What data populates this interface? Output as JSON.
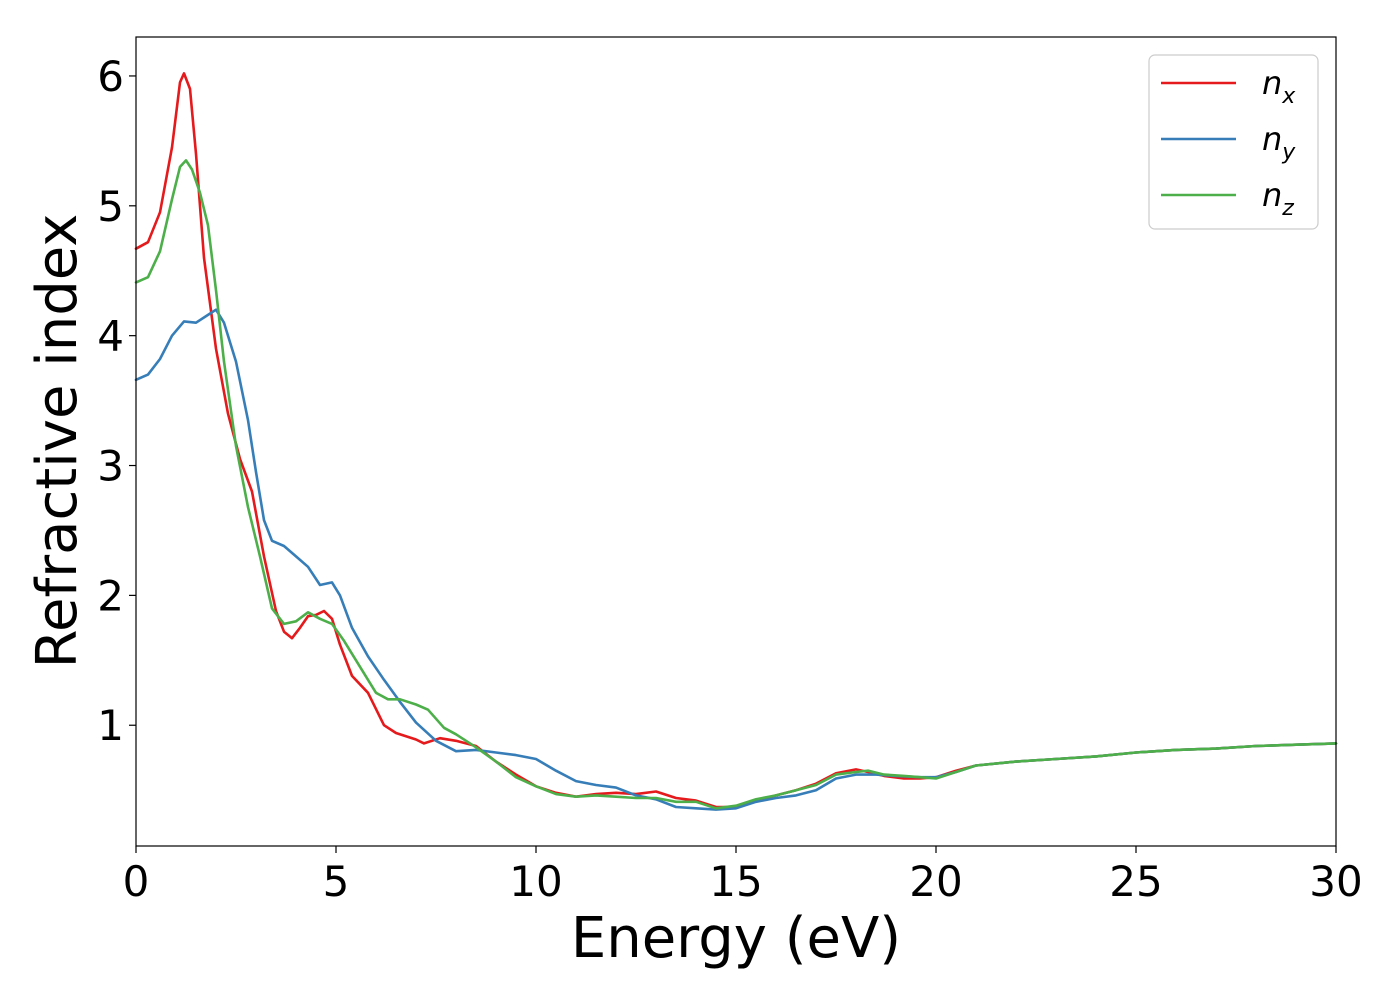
{
  "chart_data": {
    "type": "line",
    "xlabel": "Energy (eV)",
    "ylabel": "Refractive index",
    "xlim": [
      0,
      30
    ],
    "ylim": [
      0.07,
      6.3
    ],
    "xticks": [
      0,
      5,
      10,
      15,
      20,
      25,
      30
    ],
    "yticks": [
      1,
      2,
      3,
      4,
      5,
      6
    ],
    "grid": false,
    "legend_position": "top-right",
    "series": [
      {
        "name": "n",
        "sub": "x",
        "color": "#e41a1c",
        "points": [
          [
            0,
            4.67
          ],
          [
            0.3,
            4.72
          ],
          [
            0.6,
            4.95
          ],
          [
            0.9,
            5.45
          ],
          [
            1.1,
            5.95
          ],
          [
            1.2,
            6.02
          ],
          [
            1.35,
            5.9
          ],
          [
            1.5,
            5.4
          ],
          [
            1.7,
            4.6
          ],
          [
            2.0,
            3.9
          ],
          [
            2.3,
            3.4
          ],
          [
            2.6,
            3.05
          ],
          [
            2.9,
            2.8
          ],
          [
            3.2,
            2.3
          ],
          [
            3.5,
            1.88
          ],
          [
            3.7,
            1.72
          ],
          [
            3.9,
            1.67
          ],
          [
            4.1,
            1.75
          ],
          [
            4.3,
            1.84
          ],
          [
            4.5,
            1.85
          ],
          [
            4.7,
            1.88
          ],
          [
            4.9,
            1.82
          ],
          [
            5.1,
            1.62
          ],
          [
            5.4,
            1.38
          ],
          [
            5.8,
            1.25
          ],
          [
            6.2,
            1.0
          ],
          [
            6.5,
            0.94
          ],
          [
            7.0,
            0.89
          ],
          [
            7.2,
            0.86
          ],
          [
            7.6,
            0.9
          ],
          [
            8.0,
            0.88
          ],
          [
            8.5,
            0.84
          ],
          [
            9.0,
            0.72
          ],
          [
            9.5,
            0.62
          ],
          [
            10.0,
            0.53
          ],
          [
            10.5,
            0.48
          ],
          [
            11.0,
            0.45
          ],
          [
            11.5,
            0.47
          ],
          [
            12.0,
            0.48
          ],
          [
            12.5,
            0.47
          ],
          [
            13.0,
            0.49
          ],
          [
            13.5,
            0.44
          ],
          [
            14.0,
            0.42
          ],
          [
            14.5,
            0.37
          ],
          [
            15.0,
            0.37
          ],
          [
            15.5,
            0.42
          ],
          [
            16.0,
            0.46
          ],
          [
            16.5,
            0.5
          ],
          [
            17.0,
            0.55
          ],
          [
            17.5,
            0.63
          ],
          [
            18.0,
            0.66
          ],
          [
            18.3,
            0.64
          ],
          [
            18.7,
            0.61
          ],
          [
            19.2,
            0.59
          ],
          [
            19.6,
            0.59
          ],
          [
            20.0,
            0.6
          ],
          [
            20.5,
            0.65
          ],
          [
            21.0,
            0.69
          ],
          [
            22.0,
            0.72
          ],
          [
            23.0,
            0.74
          ],
          [
            24.0,
            0.76
          ],
          [
            25.0,
            0.79
          ],
          [
            26.0,
            0.81
          ],
          [
            27.0,
            0.82
          ],
          [
            28.0,
            0.84
          ],
          [
            29.0,
            0.85
          ],
          [
            30.0,
            0.86
          ]
        ]
      },
      {
        "name": "n",
        "sub": "y",
        "color": "#377eb8",
        "points": [
          [
            0,
            3.66
          ],
          [
            0.3,
            3.7
          ],
          [
            0.6,
            3.82
          ],
          [
            0.9,
            4.0
          ],
          [
            1.2,
            4.11
          ],
          [
            1.5,
            4.1
          ],
          [
            1.8,
            4.16
          ],
          [
            2.0,
            4.2
          ],
          [
            2.2,
            4.1
          ],
          [
            2.5,
            3.8
          ],
          [
            2.8,
            3.35
          ],
          [
            3.0,
            2.95
          ],
          [
            3.2,
            2.58
          ],
          [
            3.4,
            2.42
          ],
          [
            3.7,
            2.38
          ],
          [
            4.0,
            2.3
          ],
          [
            4.3,
            2.22
          ],
          [
            4.6,
            2.08
          ],
          [
            4.9,
            2.1
          ],
          [
            5.1,
            2.0
          ],
          [
            5.4,
            1.75
          ],
          [
            5.8,
            1.53
          ],
          [
            6.2,
            1.35
          ],
          [
            6.6,
            1.18
          ],
          [
            7.0,
            1.02
          ],
          [
            7.5,
            0.88
          ],
          [
            8.0,
            0.8
          ],
          [
            8.5,
            0.81
          ],
          [
            9.0,
            0.79
          ],
          [
            9.5,
            0.77
          ],
          [
            10.0,
            0.74
          ],
          [
            10.5,
            0.65
          ],
          [
            11.0,
            0.57
          ],
          [
            11.5,
            0.54
          ],
          [
            12.0,
            0.52
          ],
          [
            12.5,
            0.46
          ],
          [
            13.0,
            0.43
          ],
          [
            13.5,
            0.37
          ],
          [
            14.0,
            0.36
          ],
          [
            14.5,
            0.35
          ],
          [
            15.0,
            0.36
          ],
          [
            15.5,
            0.41
          ],
          [
            16.0,
            0.44
          ],
          [
            16.5,
            0.46
          ],
          [
            17.0,
            0.5
          ],
          [
            17.5,
            0.59
          ],
          [
            18.0,
            0.62
          ],
          [
            18.5,
            0.62
          ],
          [
            19.0,
            0.61
          ],
          [
            19.6,
            0.6
          ],
          [
            20.0,
            0.6
          ],
          [
            20.5,
            0.64
          ],
          [
            21.0,
            0.69
          ],
          [
            22.0,
            0.72
          ],
          [
            23.0,
            0.74
          ],
          [
            24.0,
            0.76
          ],
          [
            25.0,
            0.79
          ],
          [
            26.0,
            0.81
          ],
          [
            27.0,
            0.82
          ],
          [
            28.0,
            0.84
          ],
          [
            29.0,
            0.85
          ],
          [
            30.0,
            0.86
          ]
        ]
      },
      {
        "name": "n",
        "sub": "z",
        "color": "#4daf4a",
        "points": [
          [
            0,
            4.41
          ],
          [
            0.3,
            4.45
          ],
          [
            0.6,
            4.65
          ],
          [
            0.9,
            5.05
          ],
          [
            1.1,
            5.3
          ],
          [
            1.25,
            5.35
          ],
          [
            1.4,
            5.28
          ],
          [
            1.6,
            5.1
          ],
          [
            1.8,
            4.85
          ],
          [
            2.0,
            4.35
          ],
          [
            2.2,
            3.8
          ],
          [
            2.5,
            3.15
          ],
          [
            2.8,
            2.68
          ],
          [
            3.1,
            2.3
          ],
          [
            3.4,
            1.9
          ],
          [
            3.7,
            1.78
          ],
          [
            4.0,
            1.8
          ],
          [
            4.3,
            1.87
          ],
          [
            4.6,
            1.82
          ],
          [
            4.9,
            1.78
          ],
          [
            5.2,
            1.65
          ],
          [
            5.6,
            1.45
          ],
          [
            6.0,
            1.25
          ],
          [
            6.3,
            1.2
          ],
          [
            6.6,
            1.2
          ],
          [
            7.0,
            1.16
          ],
          [
            7.3,
            1.12
          ],
          [
            7.7,
            0.98
          ],
          [
            8.0,
            0.93
          ],
          [
            8.5,
            0.83
          ],
          [
            9.0,
            0.72
          ],
          [
            9.5,
            0.6
          ],
          [
            10.0,
            0.53
          ],
          [
            10.5,
            0.47
          ],
          [
            11.0,
            0.45
          ],
          [
            11.5,
            0.46
          ],
          [
            12.0,
            0.45
          ],
          [
            12.5,
            0.44
          ],
          [
            13.0,
            0.44
          ],
          [
            13.5,
            0.41
          ],
          [
            14.0,
            0.41
          ],
          [
            14.5,
            0.36
          ],
          [
            15.0,
            0.38
          ],
          [
            15.5,
            0.43
          ],
          [
            16.0,
            0.46
          ],
          [
            16.5,
            0.5
          ],
          [
            17.0,
            0.54
          ],
          [
            17.5,
            0.62
          ],
          [
            18.0,
            0.64
          ],
          [
            18.3,
            0.65
          ],
          [
            18.7,
            0.62
          ],
          [
            19.2,
            0.61
          ],
          [
            19.6,
            0.6
          ],
          [
            20.0,
            0.59
          ],
          [
            20.5,
            0.64
          ],
          [
            21.0,
            0.69
          ],
          [
            22.0,
            0.72
          ],
          [
            23.0,
            0.74
          ],
          [
            24.0,
            0.76
          ],
          [
            25.0,
            0.79
          ],
          [
            26.0,
            0.81
          ],
          [
            27.0,
            0.82
          ],
          [
            28.0,
            0.84
          ],
          [
            29.0,
            0.85
          ],
          [
            30.0,
            0.86
          ]
        ]
      }
    ]
  }
}
